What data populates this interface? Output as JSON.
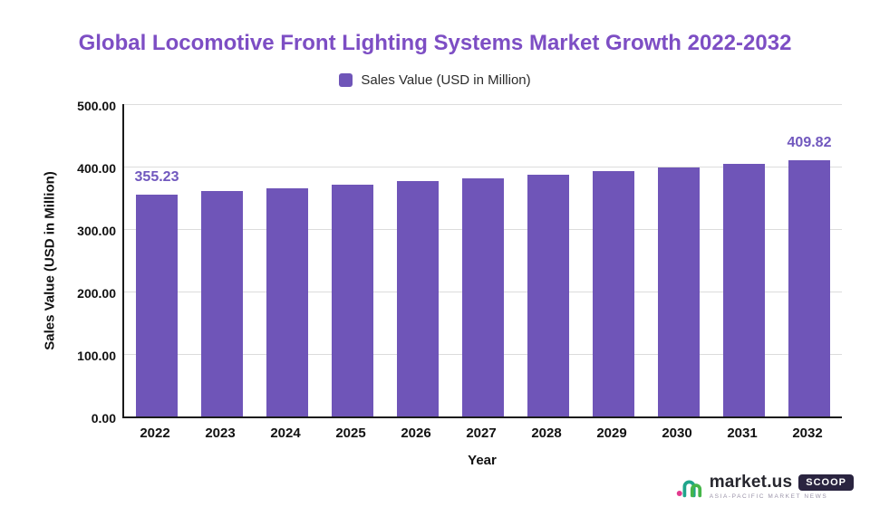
{
  "title": "Global Locomotive Front Lighting Systems Market Growth 2022-2032",
  "legend": {
    "label": "Sales Value (USD in Million)"
  },
  "axes": {
    "y_label": "Sales Value (USD in Million)",
    "x_label": "Year"
  },
  "chart_data": {
    "type": "bar",
    "categories": [
      "2022",
      "2023",
      "2024",
      "2025",
      "2026",
      "2027",
      "2028",
      "2029",
      "2030",
      "2031",
      "2032"
    ],
    "values": [
      355.23,
      360.34,
      365.53,
      370.79,
      376.13,
      381.54,
      387.03,
      392.6,
      398.25,
      403.98,
      409.82
    ],
    "title": "Global Locomotive Front Lighting Systems Market Growth 2022-2032",
    "xlabel": "Year",
    "ylabel": "Sales Value (USD in Million)",
    "ylim": [
      0,
      500
    ],
    "ytick_values": [
      0,
      100,
      200,
      300,
      400,
      500
    ],
    "bar_color": "#6f55b8",
    "grid": "horizontal",
    "legend_position": "top",
    "annotations": [
      {
        "index": 0,
        "text": "355.23"
      },
      {
        "index": 10,
        "text": "409.82"
      }
    ]
  },
  "footer": {
    "brand": "market.us",
    "badge": "SCOOP",
    "tagline": "ASIA-PACIFIC MARKET NEWS"
  },
  "colors": {
    "bar": "#6f55b8",
    "title": "#7d4ec4",
    "data_label": "#7158be",
    "axis": "#1a1a1a",
    "gridline": "#dcdcdc",
    "logo_dot": "#e23a8e",
    "logo_arch1": "#1fa58b",
    "logo_arch2": "#45b649"
  }
}
